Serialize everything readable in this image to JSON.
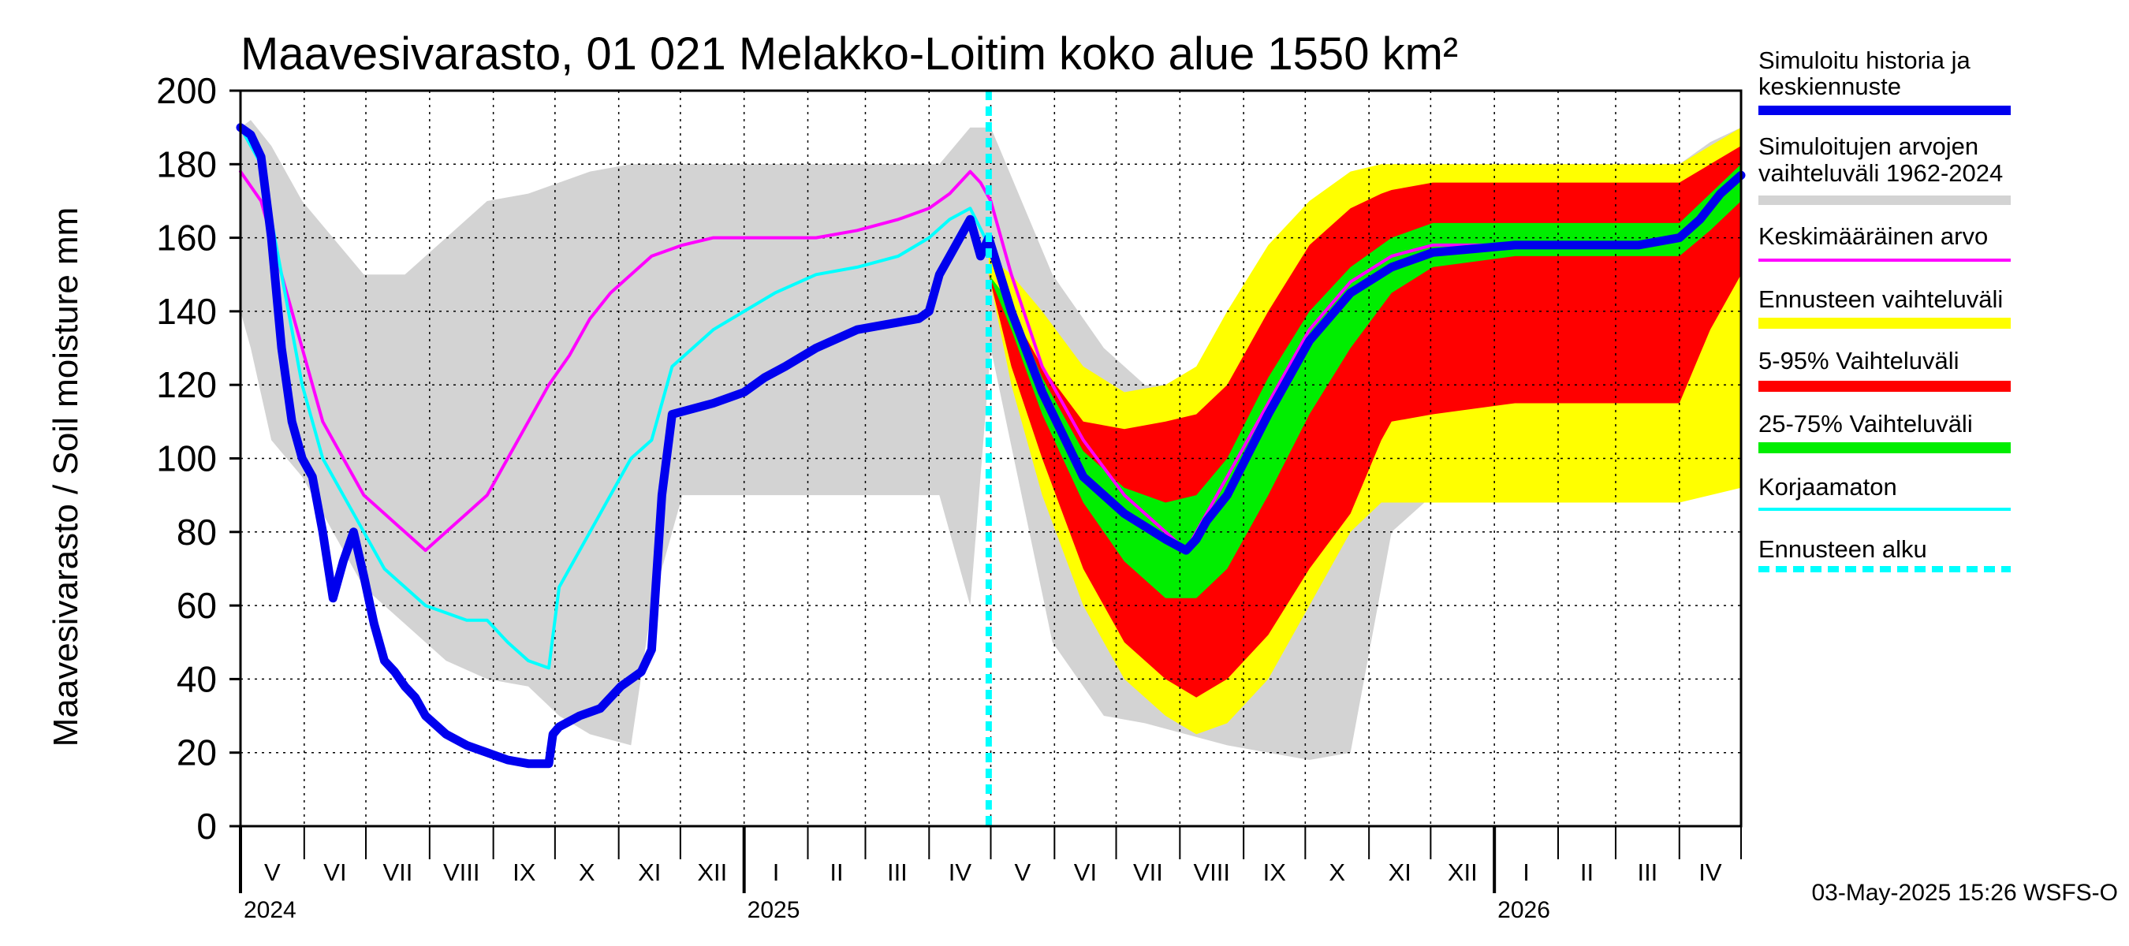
{
  "chart_data": {
    "type": "area",
    "title": "Maavesivarasto, 01 021 Melakko-Loitim koko alue 1550 km²",
    "ylabel": "Maavesivarasto / Soil moisture   mm",
    "xlabel": "",
    "ylim": [
      0,
      200
    ],
    "yticks": [
      0,
      20,
      40,
      60,
      80,
      100,
      120,
      140,
      160,
      180,
      200
    ],
    "xlim_days": [
      0,
      730
    ],
    "forecast_start_day": 364,
    "months": [
      {
        "label": "V",
        "start": 0,
        "end": 31
      },
      {
        "label": "VI",
        "start": 31,
        "end": 61
      },
      {
        "label": "VII",
        "start": 61,
        "end": 92
      },
      {
        "label": "VIII",
        "start": 92,
        "end": 123
      },
      {
        "label": "IX",
        "start": 123,
        "end": 153
      },
      {
        "label": "X",
        "start": 153,
        "end": 184
      },
      {
        "label": "XI",
        "start": 184,
        "end": 214
      },
      {
        "label": "XII",
        "start": 214,
        "end": 245
      },
      {
        "label": "I",
        "start": 245,
        "end": 276
      },
      {
        "label": "II",
        "start": 276,
        "end": 304
      },
      {
        "label": "III",
        "start": 304,
        "end": 335
      },
      {
        "label": "IV",
        "start": 335,
        "end": 365
      },
      {
        "label": "V",
        "start": 365,
        "end": 396
      },
      {
        "label": "VI",
        "start": 396,
        "end": 426
      },
      {
        "label": "VII",
        "start": 426,
        "end": 457
      },
      {
        "label": "VIII",
        "start": 457,
        "end": 488
      },
      {
        "label": "IX",
        "start": 488,
        "end": 518
      },
      {
        "label": "X",
        "start": 518,
        "end": 549
      },
      {
        "label": "XI",
        "start": 549,
        "end": 579
      },
      {
        "label": "XII",
        "start": 579,
        "end": 610
      },
      {
        "label": "I",
        "start": 610,
        "end": 641
      },
      {
        "label": "II",
        "start": 641,
        "end": 669
      },
      {
        "label": "III",
        "start": 669,
        "end": 700
      },
      {
        "label": "IV",
        "start": 700,
        "end": 730
      }
    ],
    "years": [
      {
        "label": "2024",
        "day": 0
      },
      {
        "label": "2025",
        "day": 245
      },
      {
        "label": "2026",
        "day": 610
      }
    ],
    "series": [
      {
        "name": "Simuloitujen arvojen vaihteluväli 1962-2024",
        "kind": "band",
        "color": "#d3d3d3",
        "x": [
          0,
          5,
          15,
          30,
          45,
          60,
          80,
          100,
          120,
          140,
          155,
          170,
          190,
          200,
          215,
          245,
          280,
          320,
          340,
          355,
          365,
          380,
          395,
          420,
          440,
          460,
          480,
          500,
          520,
          540,
          560,
          580,
          600,
          620,
          650,
          680,
          700,
          715,
          730
        ],
        "low": [
          140,
          130,
          105,
          95,
          80,
          65,
          55,
          45,
          40,
          38,
          30,
          25,
          22,
          60,
          90,
          90,
          90,
          90,
          90,
          60,
          130,
          90,
          50,
          30,
          28,
          25,
          22,
          20,
          18,
          20,
          80,
          90,
          90,
          90,
          90,
          90,
          90,
          95,
          135
        ],
        "high": [
          190,
          192,
          185,
          170,
          160,
          150,
          150,
          160,
          170,
          172,
          175,
          178,
          180,
          180,
          180,
          180,
          180,
          180,
          180,
          190,
          190,
          170,
          150,
          130,
          120,
          120,
          130,
          140,
          155,
          165,
          172,
          178,
          180,
          180,
          180,
          180,
          180,
          186,
          190
        ]
      },
      {
        "name": "Ennusteen vaihteluväli",
        "kind": "band",
        "color": "#ffff00",
        "x": [
          364,
          375,
          390,
          410,
          430,
          450,
          465,
          480,
          500,
          520,
          540,
          555,
          560,
          580,
          620,
          660,
          700,
          715,
          730
        ],
        "low": [
          150,
          120,
          90,
          60,
          40,
          30,
          25,
          28,
          40,
          60,
          80,
          88,
          88,
          88,
          88,
          88,
          88,
          90,
          92
        ],
        "high": [
          155,
          150,
          140,
          125,
          118,
          120,
          125,
          140,
          158,
          170,
          178,
          180,
          180,
          180,
          180,
          180,
          180,
          185,
          190
        ]
      },
      {
        "name": "5-95% Vaihteluväli",
        "kind": "band",
        "color": "#ff0000",
        "x": [
          364,
          375,
          390,
          410,
          430,
          450,
          465,
          480,
          500,
          520,
          540,
          555,
          560,
          580,
          620,
          660,
          700,
          715,
          730
        ],
        "low": [
          150,
          125,
          100,
          70,
          50,
          40,
          35,
          40,
          52,
          70,
          85,
          105,
          110,
          112,
          115,
          115,
          115,
          135,
          150
        ],
        "high": [
          150,
          140,
          125,
          110,
          108,
          110,
          112,
          120,
          140,
          158,
          168,
          172,
          173,
          175,
          175,
          175,
          175,
          180,
          185
        ]
      },
      {
        "name": "25-75% Vaihteluväli",
        "kind": "band",
        "color": "#00ee00",
        "x": [
          364,
          375,
          390,
          410,
          430,
          450,
          465,
          480,
          500,
          520,
          540,
          560,
          580,
          620,
          660,
          700,
          715,
          730
        ],
        "low": [
          150,
          135,
          112,
          88,
          72,
          62,
          62,
          70,
          90,
          112,
          130,
          145,
          152,
          155,
          155,
          155,
          162,
          170
        ],
        "high": [
          150,
          142,
          122,
          102,
          92,
          88,
          90,
          100,
          122,
          140,
          152,
          160,
          164,
          164,
          164,
          164,
          172,
          180
        ]
      },
      {
        "name": "Keskimääräinen arvo",
        "kind": "line",
        "color": "#ff00ff",
        "width": 4,
        "x": [
          0,
          10,
          20,
          30,
          40,
          50,
          60,
          70,
          80,
          90,
          100,
          110,
          120,
          130,
          140,
          150,
          160,
          170,
          180,
          190,
          200,
          215,
          230,
          245,
          260,
          280,
          300,
          320,
          335,
          345,
          350,
          355,
          360,
          365,
          375,
          390,
          410,
          430,
          450,
          460,
          465,
          470,
          480,
          500,
          520,
          540,
          560,
          580,
          600,
          620,
          650,
          680,
          700,
          710,
          720,
          730
        ],
        "y": [
          178,
          170,
          150,
          130,
          110,
          100,
          90,
          85,
          80,
          75,
          80,
          85,
          90,
          100,
          110,
          120,
          128,
          138,
          145,
          150,
          155,
          158,
          160,
          160,
          160,
          160,
          162,
          165,
          168,
          172,
          175,
          178,
          175,
          170,
          150,
          125,
          105,
          90,
          80,
          75,
          80,
          85,
          95,
          115,
          135,
          148,
          155,
          158,
          158,
          158,
          158,
          158,
          160,
          165,
          172,
          176
        ]
      },
      {
        "name": "Korjaamaton",
        "kind": "line",
        "color": "#00ffff",
        "width": 4,
        "x": [
          0,
          10,
          20,
          30,
          40,
          50,
          60,
          70,
          80,
          90,
          100,
          110,
          120,
          130,
          140,
          150,
          155,
          160,
          170,
          180,
          190,
          200,
          210,
          230,
          245,
          260,
          280,
          300,
          320,
          335,
          345,
          355,
          364
        ],
        "y": [
          190,
          180,
          150,
          120,
          100,
          90,
          80,
          70,
          65,
          60,
          58,
          56,
          56,
          50,
          45,
          43,
          65,
          70,
          80,
          90,
          100,
          105,
          125,
          135,
          140,
          145,
          150,
          152,
          155,
          160,
          165,
          168,
          158
        ]
      },
      {
        "name": "Simuloitu historia ja keskiennuste",
        "kind": "line",
        "color": "#0000ee",
        "width": 11,
        "x": [
          0,
          5,
          10,
          15,
          20,
          25,
          30,
          35,
          40,
          45,
          50,
          55,
          60,
          65,
          70,
          75,
          80,
          85,
          90,
          100,
          110,
          120,
          130,
          140,
          150,
          152,
          155,
          165,
          175,
          185,
          195,
          200,
          205,
          210,
          230,
          245,
          255,
          265,
          280,
          300,
          330,
          335,
          340,
          345,
          350,
          355,
          360,
          364,
          375,
          390,
          410,
          430,
          450,
          460,
          465,
          470,
          480,
          500,
          520,
          540,
          560,
          580,
          600,
          620,
          650,
          680,
          700,
          710,
          720,
          730
        ],
        "y": [
          190,
          188,
          182,
          160,
          130,
          110,
          100,
          95,
          80,
          62,
          72,
          80,
          68,
          55,
          45,
          42,
          38,
          35,
          30,
          25,
          22,
          20,
          18,
          17,
          17,
          25,
          27,
          30,
          32,
          38,
          42,
          48,
          90,
          112,
          115,
          118,
          122,
          125,
          130,
          135,
          138,
          140,
          150,
          155,
          160,
          165,
          155,
          160,
          140,
          118,
          95,
          85,
          78,
          75,
          78,
          83,
          90,
          112,
          132,
          145,
          152,
          156,
          157,
          158,
          158,
          158,
          160,
          165,
          172,
          177
        ]
      }
    ],
    "forecast_start_color": "#00ffff"
  },
  "legend": {
    "items": [
      {
        "label": "Simuloitu historia ja",
        "label2": "keskiennuste",
        "color": "#0000ee",
        "style": "solid",
        "width": 12
      },
      {
        "label": "Simuloitujen arvojen",
        "label2": "vaihteluväli 1962-2024",
        "color": "#d3d3d3",
        "style": "solid",
        "width": 12
      },
      {
        "label": "Keskimääräinen arvo",
        "label2": "",
        "color": "#ff00ff",
        "style": "solid",
        "width": 4
      },
      {
        "label": "Ennusteen vaihteluväli",
        "label2": "",
        "color": "#ffff00",
        "style": "solid",
        "width": 14
      },
      {
        "label": "5-95% Vaihteluväli",
        "label2": "",
        "color": "#ff0000",
        "style": "solid",
        "width": 14
      },
      {
        "label": "25-75% Vaihteluväli",
        "label2": "",
        "color": "#00ee00",
        "style": "solid",
        "width": 14
      },
      {
        "label": "Korjaamaton",
        "label2": "",
        "color": "#00ffff",
        "style": "solid",
        "width": 4
      },
      {
        "label": "Ennusteen alku",
        "label2": "",
        "color": "#00ffff",
        "style": "dashed",
        "width": 8
      }
    ]
  },
  "footer": "03-May-2025 15:26 WSFS-O"
}
